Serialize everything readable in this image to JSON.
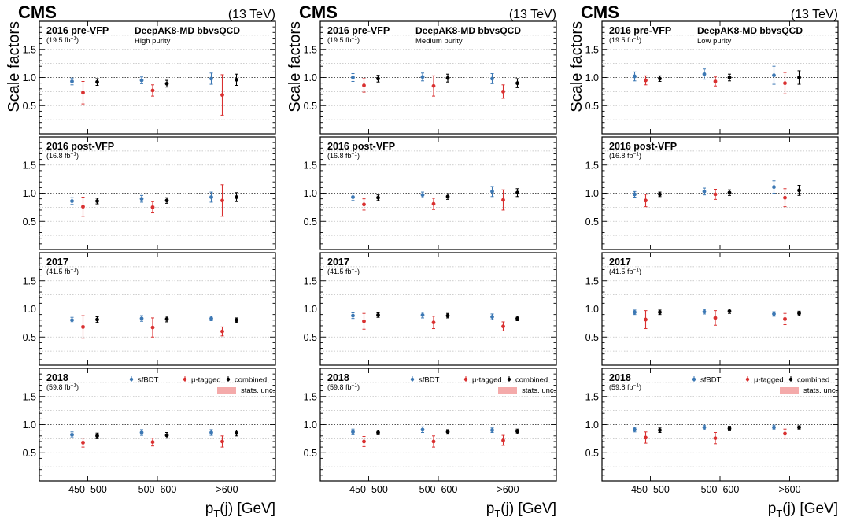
{
  "colors": {
    "sfBDT": "#3c78b4",
    "mu_tagged": "#d93030",
    "combined": "#000000",
    "stats_band": "#f4aaaa"
  },
  "chart_data": {
    "type": "scatter",
    "cms_label": "CMS",
    "energy_label": "(13 TeV)",
    "ylabel": "Scale factors",
    "xlabel": "p",
    "xlabel_sub": "T",
    "xlabel_rest": "(j) [GeV]",
    "ylim": [
      0.0,
      2.0
    ],
    "yticks": [
      "0.5",
      "1.0",
      "1.5"
    ],
    "reference_line": 1.0,
    "categories": [
      "450–500",
      "500–600",
      ">600"
    ],
    "legend": {
      "placement": "top-right of bottom row",
      "entries": [
        "sfBDT",
        "μ-tagged",
        "combined",
        "stats. unc."
      ]
    },
    "eras": [
      {
        "name": "2016 pre-VFP",
        "lumi": "(19.5 fb",
        "lumi_sup": "−1",
        "lumi_close": ")"
      },
      {
        "name": "2016 post-VFP",
        "lumi": "(16.8 fb",
        "lumi_sup": "−1",
        "lumi_close": ")"
      },
      {
        "name": "2017",
        "lumi": "(41.5 fb",
        "lumi_sup": "−1",
        "lumi_close": ")"
      },
      {
        "name": "2018",
        "lumi": "(59.8 fb",
        "lumi_sup": "−1",
        "lumi_close": ")"
      }
    ],
    "columns": [
      {
        "tagger": "DeepAK8-MD bbvsQCD",
        "purity": "High purity",
        "panels": [
          {
            "sfBDT": [
              [
                0.93,
                0.06
              ],
              [
                0.95,
                0.06
              ],
              [
                0.98,
                0.1
              ]
            ],
            "mu_tagged": [
              [
                0.73,
                0.2
              ],
              [
                0.77,
                0.1
              ],
              [
                0.69,
                0.36
              ]
            ],
            "combined": [
              [
                0.92,
                0.06
              ],
              [
                0.89,
                0.06
              ],
              [
                0.96,
                0.1
              ]
            ]
          },
          {
            "sfBDT": [
              [
                0.86,
                0.06
              ],
              [
                0.9,
                0.06
              ],
              [
                0.93,
                0.09
              ]
            ],
            "mu_tagged": [
              [
                0.76,
                0.17
              ],
              [
                0.75,
                0.1
              ],
              [
                0.87,
                0.28
              ]
            ],
            "combined": [
              [
                0.86,
                0.05
              ],
              [
                0.87,
                0.05
              ],
              [
                0.93,
                0.08
              ]
            ]
          },
          {
            "sfBDT": [
              [
                0.8,
                0.05
              ],
              [
                0.83,
                0.05
              ],
              [
                0.83,
                0.04
              ]
            ],
            "mu_tagged": [
              [
                0.68,
                0.2
              ],
              [
                0.67,
                0.17
              ],
              [
                0.6,
                0.08
              ]
            ],
            "combined": [
              [
                0.81,
                0.05
              ],
              [
                0.82,
                0.05
              ],
              [
                0.8,
                0.04
              ]
            ]
          },
          {
            "sfBDT": [
              [
                0.82,
                0.05
              ],
              [
                0.86,
                0.05
              ],
              [
                0.86,
                0.05
              ]
            ],
            "mu_tagged": [
              [
                0.68,
                0.08
              ],
              [
                0.69,
                0.07
              ],
              [
                0.7,
                0.1
              ]
            ],
            "combined": [
              [
                0.8,
                0.05
              ],
              [
                0.81,
                0.05
              ],
              [
                0.85,
                0.05
              ]
            ]
          }
        ]
      },
      {
        "tagger": "DeepAK8-MD bbvsQCD",
        "purity": "Medium purity",
        "panels": [
          {
            "sfBDT": [
              [
                1.0,
                0.07
              ],
              [
                1.01,
                0.07
              ],
              [
                0.98,
                0.09
              ]
            ],
            "mu_tagged": [
              [
                0.86,
                0.12
              ],
              [
                0.85,
                0.18
              ],
              [
                0.75,
                0.12
              ]
            ],
            "combined": [
              [
                0.98,
                0.06
              ],
              [
                0.99,
                0.07
              ],
              [
                0.9,
                0.08
              ]
            ]
          },
          {
            "sfBDT": [
              [
                0.93,
                0.06
              ],
              [
                0.97,
                0.05
              ],
              [
                1.03,
                0.09
              ]
            ],
            "mu_tagged": [
              [
                0.8,
                0.1
              ],
              [
                0.81,
                0.1
              ],
              [
                0.88,
                0.18
              ]
            ],
            "combined": [
              [
                0.92,
                0.05
              ],
              [
                0.94,
                0.05
              ],
              [
                1.01,
                0.07
              ]
            ]
          },
          {
            "sfBDT": [
              [
                0.88,
                0.05
              ],
              [
                0.89,
                0.05
              ],
              [
                0.86,
                0.05
              ]
            ],
            "mu_tagged": [
              [
                0.78,
                0.14
              ],
              [
                0.76,
                0.11
              ],
              [
                0.69,
                0.08
              ]
            ],
            "combined": [
              [
                0.89,
                0.04
              ],
              [
                0.88,
                0.04
              ],
              [
                0.83,
                0.04
              ]
            ]
          },
          {
            "sfBDT": [
              [
                0.87,
                0.05
              ],
              [
                0.91,
                0.05
              ],
              [
                0.9,
                0.04
              ]
            ],
            "mu_tagged": [
              [
                0.7,
                0.09
              ],
              [
                0.7,
                0.1
              ],
              [
                0.72,
                0.09
              ]
            ],
            "combined": [
              [
                0.86,
                0.04
              ],
              [
                0.87,
                0.04
              ],
              [
                0.88,
                0.04
              ]
            ]
          }
        ]
      },
      {
        "tagger": "DeepAK8-MD bbvsQCD",
        "purity": "Low purity",
        "panels": [
          {
            "sfBDT": [
              [
                1.02,
                0.08
              ],
              [
                1.06,
                0.09
              ],
              [
                1.04,
                0.16
              ]
            ],
            "mu_tagged": [
              [
                0.95,
                0.08
              ],
              [
                0.93,
                0.08
              ],
              [
                0.9,
                0.19
              ]
            ],
            "combined": [
              [
                0.98,
                0.05
              ],
              [
                1.0,
                0.06
              ],
              [
                1.0,
                0.12
              ]
            ]
          },
          {
            "sfBDT": [
              [
                0.98,
                0.05
              ],
              [
                1.03,
                0.06
              ],
              [
                1.11,
                0.11
              ]
            ],
            "mu_tagged": [
              [
                0.87,
                0.11
              ],
              [
                0.98,
                0.09
              ],
              [
                0.92,
                0.16
              ]
            ],
            "combined": [
              [
                0.98,
                0.04
              ],
              [
                1.01,
                0.05
              ],
              [
                1.05,
                0.09
              ]
            ]
          },
          {
            "sfBDT": [
              [
                0.94,
                0.04
              ],
              [
                0.95,
                0.04
              ],
              [
                0.91,
                0.04
              ]
            ],
            "mu_tagged": [
              [
                0.81,
                0.16
              ],
              [
                0.84,
                0.13
              ],
              [
                0.82,
                0.1
              ]
            ],
            "combined": [
              [
                0.94,
                0.04
              ],
              [
                0.96,
                0.04
              ],
              [
                0.92,
                0.04
              ]
            ]
          },
          {
            "sfBDT": [
              [
                0.91,
                0.04
              ],
              [
                0.95,
                0.04
              ],
              [
                0.95,
                0.04
              ]
            ],
            "mu_tagged": [
              [
                0.77,
                0.1
              ],
              [
                0.76,
                0.1
              ],
              [
                0.84,
                0.08
              ]
            ],
            "combined": [
              [
                0.9,
                0.04
              ],
              [
                0.93,
                0.04
              ],
              [
                0.95,
                0.03
              ]
            ]
          }
        ]
      }
    ]
  }
}
